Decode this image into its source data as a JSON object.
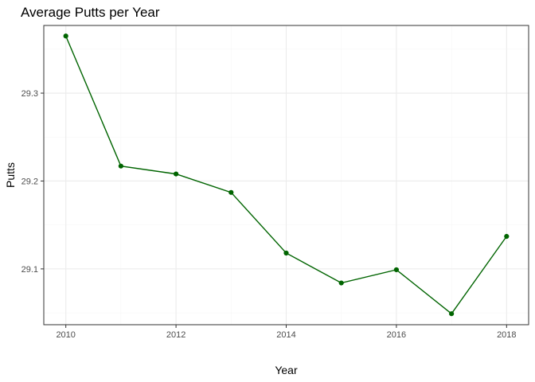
{
  "chart_data": {
    "type": "line",
    "title": "Average Putts per Year",
    "xlabel": "Year",
    "ylabel": "Putts",
    "x": [
      2010,
      2011,
      2012,
      2013,
      2014,
      2015,
      2016,
      2017,
      2018
    ],
    "series": [
      {
        "values": [
          29.365,
          29.217,
          29.208,
          29.187,
          29.118,
          29.084,
          29.099,
          29.049,
          29.137
        ]
      }
    ],
    "xlim": [
      2009.6,
      2018.4
    ],
    "ylim": [
      29.0365,
      29.377
    ],
    "x_ticks": [
      2010,
      2012,
      2014,
      2016,
      2018
    ],
    "x_tick_labels": [
      "2010",
      "2012",
      "2014",
      "2016",
      "2018"
    ],
    "y_ticks": [
      29.1,
      29.2,
      29.3
    ],
    "y_tick_labels": [
      "29.1",
      "29.2",
      "29.3"
    ],
    "x_minor_ticks": [
      2011,
      2013,
      2015,
      2017
    ],
    "y_minor_ticks": [
      29.05,
      29.15,
      29.25,
      29.35
    ],
    "grid": true,
    "legend": "none",
    "colors": {
      "line": "#006400",
      "point": "#006400"
    }
  }
}
